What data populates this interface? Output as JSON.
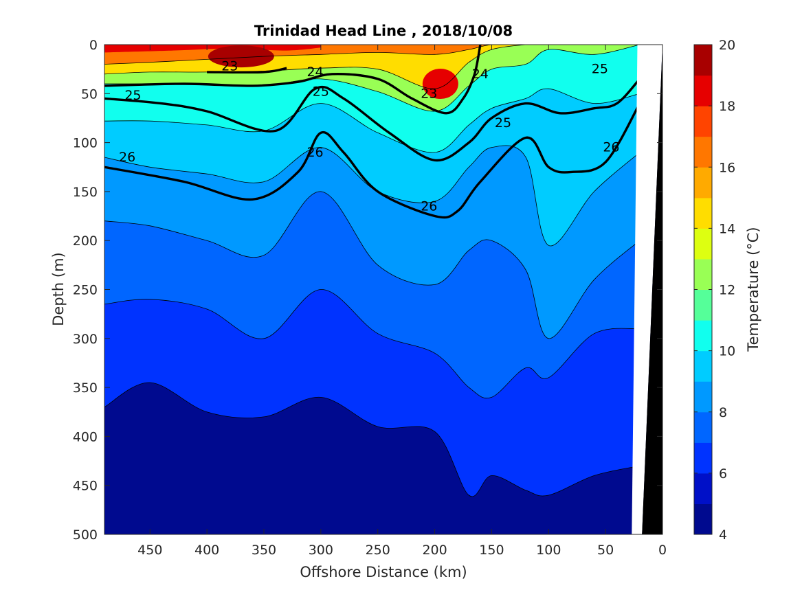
{
  "chart_data": {
    "type": "filled-contour",
    "title": "Trinidad Head Line , 2018/10/08",
    "xlabel": "Offshore Distance (km)",
    "ylabel": "Depth (m)",
    "xlim": [
      490,
      0
    ],
    "ylim": [
      0,
      500
    ],
    "x_direction": "reversed",
    "y_direction": "reversed",
    "xticks": [
      450,
      400,
      350,
      300,
      250,
      200,
      150,
      100,
      50,
      0
    ],
    "yticks": [
      0,
      50,
      100,
      150,
      200,
      250,
      300,
      350,
      400,
      450,
      500
    ],
    "colorbar": {
      "label": "Temperature (°C)",
      "range": [
        4,
        20
      ],
      "ticks": [
        4,
        6,
        8,
        10,
        12,
        14,
        16,
        18,
        20
      ],
      "levels": [
        4,
        5,
        6,
        7,
        8,
        9,
        10,
        11,
        12,
        13,
        14,
        15,
        16,
        17,
        18,
        19,
        20
      ],
      "colors": [
        "#000a8f",
        "#0010c8",
        "#0033ff",
        "#0066ff",
        "#0099ff",
        "#00ccff",
        "#11ffee",
        "#55ff99",
        "#99ff55",
        "#ddff11",
        "#ffdd00",
        "#ffaa00",
        "#ff7700",
        "#ff4400",
        "#e60000",
        "#a80000"
      ]
    },
    "temperature_isotherm_depths": [
      {
        "temp": 16,
        "x": [
          490,
          450,
          400,
          350,
          300,
          250,
          200,
          170,
          150,
          120,
          100,
          60,
          20
        ],
        "depth": [
          20,
          18,
          15,
          12,
          10,
          8,
          10,
          5,
          0,
          0,
          0,
          0,
          0
        ]
      },
      {
        "temp": 14,
        "x": [
          490,
          450,
          400,
          350,
          300,
          250,
          200,
          170,
          150,
          120,
          100,
          60,
          20
        ],
        "depth": [
          30,
          28,
          28,
          27,
          24,
          25,
          45,
          18,
          5,
          0,
          0,
          0,
          0
        ]
      },
      {
        "temp": 12,
        "x": [
          490,
          450,
          400,
          350,
          300,
          250,
          200,
          170,
          150,
          120,
          100,
          60,
          20
        ],
        "depth": [
          40,
          40,
          40,
          42,
          35,
          48,
          68,
          42,
          25,
          20,
          5,
          10,
          0
        ]
      },
      {
        "temp": 10,
        "x": [
          490,
          450,
          400,
          350,
          300,
          250,
          200,
          170,
          150,
          120,
          100,
          60,
          20
        ],
        "depth": [
          78,
          78,
          82,
          88,
          60,
          90,
          110,
          82,
          65,
          55,
          45,
          60,
          50
        ]
      },
      {
        "temp": 9,
        "x": [
          490,
          450,
          400,
          350,
          300,
          250,
          200,
          170,
          150,
          120,
          100,
          60,
          20
        ],
        "depth": [
          115,
          125,
          132,
          140,
          105,
          150,
          160,
          125,
          105,
          115,
          205,
          150,
          110
        ]
      },
      {
        "temp": 8,
        "x": [
          490,
          450,
          400,
          350,
          300,
          250,
          200,
          170,
          150,
          120,
          100,
          60,
          20
        ],
        "depth": [
          180,
          185,
          200,
          215,
          150,
          225,
          245,
          210,
          200,
          230,
          300,
          240,
          200
        ]
      },
      {
        "temp": 7,
        "x": [
          490,
          450,
          400,
          350,
          300,
          250,
          200,
          170,
          150,
          120,
          100,
          60,
          20
        ],
        "depth": [
          265,
          260,
          270,
          300,
          250,
          295,
          315,
          350,
          360,
          330,
          340,
          295,
          290
        ]
      },
      {
        "temp": 6,
        "x": [
          490,
          450,
          400,
          350,
          300,
          250,
          200,
          170,
          150,
          120,
          100,
          60,
          20
        ],
        "depth": [
          370,
          345,
          375,
          380,
          360,
          390,
          395,
          460,
          440,
          455,
          460,
          440,
          430
        ]
      }
    ],
    "sigma_theta_contours": [
      {
        "label": "23",
        "style": "thick",
        "x": [
          400,
          350,
          330
        ],
        "depth": [
          28,
          28,
          24
        ]
      },
      {
        "label": "24",
        "style": "thick",
        "x": [
          490,
          420,
          360,
          320,
          290,
          250,
          220,
          190,
          175,
          165,
          160
        ],
        "depth": [
          42,
          40,
          42,
          38,
          30,
          35,
          55,
          70,
          55,
          30,
          0
        ]
      },
      {
        "label": "25",
        "style": "thick",
        "x": [
          490,
          440,
          400,
          340,
          305,
          280,
          240,
          200,
          170,
          150,
          120,
          90,
          60,
          40,
          20
        ],
        "depth": [
          55,
          60,
          68,
          88,
          45,
          55,
          90,
          118,
          100,
          75,
          60,
          70,
          65,
          60,
          35
        ]
      },
      {
        "label": "26",
        "style": "thick",
        "x": [
          490,
          420,
          360,
          320,
          300,
          280,
          250,
          200,
          180,
          160,
          120,
          100,
          80,
          50,
          20
        ],
        "depth": [
          125,
          140,
          158,
          130,
          90,
          110,
          150,
          175,
          170,
          140,
          95,
          125,
          130,
          120,
          60
        ]
      }
    ],
    "contour_labels": [
      {
        "text": "23",
        "x": 380,
        "depth": 22
      },
      {
        "text": "24",
        "x": 305,
        "depth": 28
      },
      {
        "text": "25",
        "x": 465,
        "depth": 52
      },
      {
        "text": "25",
        "x": 300,
        "depth": 48
      },
      {
        "text": "26",
        "x": 470,
        "depth": 115
      },
      {
        "text": "23",
        "x": 205,
        "depth": 50
      },
      {
        "text": "24",
        "x": 160,
        "depth": 30
      },
      {
        "text": "25",
        "x": 140,
        "depth": 80
      },
      {
        "text": "26",
        "x": 305,
        "depth": 110
      },
      {
        "text": "26",
        "x": 205,
        "depth": 165
      },
      {
        "text": "25",
        "x": 55,
        "depth": 25
      },
      {
        "text": "26",
        "x": 45,
        "depth": 105
      }
    ],
    "bathymetry": {
      "x": [
        18,
        0,
        0,
        25
      ],
      "depth": [
        500,
        0,
        500,
        500
      ]
    }
  }
}
